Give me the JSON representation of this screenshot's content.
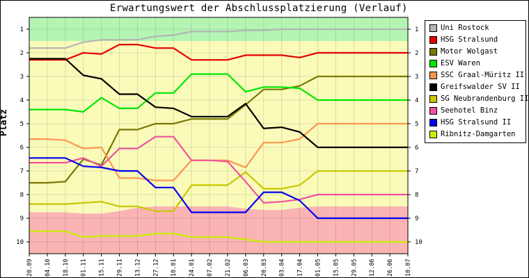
{
  "chart_data": {
    "type": "line",
    "title": "Erwartungswert der Abschlussplatzierung (Verlauf)",
    "ylabel": "Platz",
    "xlabel": "",
    "ylim": [
      1,
      10
    ],
    "y_inverted": true,
    "yticks": [
      "1",
      "2",
      "3",
      "4",
      "5",
      "6",
      "7",
      "8",
      "9",
      "10"
    ],
    "grid": true,
    "legend_position": "right",
    "categories": [
      "20.09",
      "04.10",
      "18.10",
      "01.11",
      "15.11",
      "29.11",
      "13.12",
      "27.12",
      "10.01",
      "24.01",
      "07.02",
      "21.02",
      "06.03",
      "20.03",
      "03.04",
      "17.04",
      "01.05",
      "15.05",
      "29.05",
      "12.06",
      "26.06",
      "10.07"
    ],
    "bands": [
      {
        "name": "top",
        "color": "#b4f5b4",
        "ranges": [
          [
            0.5,
            1.5
          ],
          [
            0.5,
            1.5
          ],
          [
            0.5,
            1.5
          ],
          [
            0.5,
            1.5
          ],
          [
            0.5,
            1.5
          ],
          [
            0.5,
            1.5
          ],
          [
            0.5,
            1.5
          ],
          [
            0.5,
            1.5
          ],
          [
            0.5,
            1.5
          ],
          [
            0.5,
            1.5
          ],
          [
            0.5,
            1.5
          ],
          [
            0.5,
            1.5
          ],
          [
            0.5,
            1.5
          ],
          [
            0.5,
            1.5
          ],
          [
            0.5,
            1.5
          ],
          [
            0.5,
            1.5
          ],
          [
            0.5,
            1.5
          ],
          [
            0.5,
            1.5
          ],
          [
            0.5,
            1.5
          ],
          [
            0.5,
            1.5
          ],
          [
            0.5,
            1.5
          ],
          [
            0.5,
            1.5
          ]
        ]
      },
      {
        "name": "middle",
        "color": "#fafab9",
        "ranges": [
          [
            1.5,
            8.75
          ],
          [
            1.5,
            8.75
          ],
          [
            1.5,
            8.75
          ],
          [
            1.5,
            8.8
          ],
          [
            1.5,
            8.8
          ],
          [
            1.5,
            8.7
          ],
          [
            1.5,
            8.55
          ],
          [
            1.5,
            8.5
          ],
          [
            1.5,
            8.5
          ],
          [
            1.5,
            8.5
          ],
          [
            1.5,
            8.5
          ],
          [
            1.5,
            8.5
          ],
          [
            1.5,
            8.6
          ],
          [
            1.5,
            8.65
          ],
          [
            1.5,
            8.65
          ],
          [
            1.5,
            8.55
          ],
          [
            1.5,
            8.5
          ],
          [
            1.5,
            8.5
          ],
          [
            1.5,
            8.5
          ],
          [
            1.5,
            8.5
          ],
          [
            1.5,
            8.5
          ],
          [
            1.5,
            8.5
          ]
        ]
      },
      {
        "name": "bottom",
        "color": "#fab4b4",
        "ranges": [
          [
            8.75,
            10.5
          ],
          [
            8.75,
            10.5
          ],
          [
            8.75,
            10.5
          ],
          [
            8.8,
            10.5
          ],
          [
            8.8,
            10.5
          ],
          [
            8.7,
            10.5
          ],
          [
            8.55,
            10.5
          ],
          [
            8.5,
            10.5
          ],
          [
            8.5,
            10.5
          ],
          [
            8.5,
            10.5
          ],
          [
            8.5,
            10.5
          ],
          [
            8.5,
            10.5
          ],
          [
            8.6,
            10.5
          ],
          [
            8.65,
            10.5
          ],
          [
            8.65,
            10.5
          ],
          [
            8.55,
            10.5
          ],
          [
            8.5,
            10.5
          ],
          [
            8.5,
            10.5
          ],
          [
            8.5,
            10.5
          ],
          [
            8.5,
            10.5
          ],
          [
            8.5,
            10.5
          ],
          [
            8.5,
            10.5
          ]
        ]
      }
    ],
    "series": [
      {
        "name": "Uni Rostock",
        "color": "#b4b4b4",
        "values": [
          1.8,
          1.8,
          1.8,
          1.55,
          1.45,
          1.45,
          1.45,
          1.3,
          1.25,
          1.1,
          1.1,
          1.1,
          1.05,
          1.05,
          1.0,
          1.0,
          1.0,
          1.0,
          1.0,
          1.0,
          1.0,
          1.0
        ]
      },
      {
        "name": "HSG Stralsund",
        "color": "#e60000",
        "values": [
          2.3,
          2.3,
          2.3,
          2.0,
          2.05,
          1.65,
          1.65,
          1.8,
          1.8,
          2.3,
          2.3,
          2.3,
          2.1,
          2.1,
          2.1,
          2.2,
          2.0,
          2.0,
          2.0,
          2.0,
          2.0,
          2.0
        ]
      },
      {
        "name": "Motor Wolgast",
        "color": "#787800",
        "values": [
          7.5,
          7.5,
          7.45,
          6.5,
          6.75,
          5.25,
          5.25,
          5.0,
          5.0,
          4.8,
          4.8,
          4.8,
          4.2,
          3.55,
          3.55,
          3.4,
          3.0,
          3.0,
          3.0,
          3.0,
          3.0,
          3.0
        ]
      },
      {
        "name": "ESV Waren",
        "color": "#00e600",
        "values": [
          4.4,
          4.4,
          4.4,
          4.5,
          3.9,
          4.35,
          4.35,
          3.7,
          3.7,
          2.9,
          2.9,
          2.9,
          3.65,
          3.45,
          3.45,
          3.5,
          4.0,
          4.0,
          4.0,
          4.0,
          4.0,
          4.0
        ]
      },
      {
        "name": "SSC Graal-Müritz II",
        "color": "#fa9650",
        "values": [
          5.65,
          5.65,
          5.7,
          6.05,
          6.0,
          7.3,
          7.3,
          7.4,
          7.4,
          6.55,
          6.55,
          6.55,
          6.85,
          5.8,
          5.8,
          5.65,
          5.0,
          5.0,
          5.0,
          5.0,
          5.0,
          5.0
        ]
      },
      {
        "name": "Greifswalder SV II",
        "color": "#000000",
        "values": [
          2.25,
          2.25,
          2.25,
          2.95,
          3.1,
          3.75,
          3.75,
          4.3,
          4.35,
          4.7,
          4.7,
          4.7,
          4.15,
          5.2,
          5.15,
          5.35,
          6.0,
          6.0,
          6.0,
          6.0,
          6.0,
          6.0
        ]
      },
      {
        "name": "SG Neubrandenburg II",
        "color": "#c8c800",
        "values": [
          8.4,
          8.4,
          8.4,
          8.35,
          8.3,
          8.5,
          8.5,
          8.7,
          8.7,
          7.6,
          7.6,
          7.6,
          7.05,
          7.75,
          7.75,
          7.6,
          7.0,
          7.0,
          7.0,
          7.0,
          7.0,
          7.0
        ]
      },
      {
        "name": "Seehotel Binz",
        "color": "#f050a0",
        "values": [
          6.65,
          6.65,
          6.65,
          6.45,
          6.8,
          6.05,
          6.05,
          5.55,
          5.55,
          6.55,
          6.55,
          6.6,
          7.45,
          8.35,
          8.3,
          8.2,
          8.0,
          8.0,
          8.0,
          8.0,
          8.0,
          8.0
        ]
      },
      {
        "name": "HSG Stralsund II",
        "color": "#0000f0",
        "values": [
          6.45,
          6.45,
          6.45,
          6.8,
          6.85,
          7.0,
          7.0,
          7.7,
          7.7,
          8.75,
          8.75,
          8.75,
          8.75,
          7.9,
          7.9,
          8.25,
          9.0,
          9.0,
          9.0,
          9.0,
          9.0,
          9.0
        ]
      },
      {
        "name": "Ribnitz-Damgarten",
        "color": "#c8f000",
        "values": [
          9.55,
          9.55,
          9.55,
          9.8,
          9.75,
          9.75,
          9.75,
          9.65,
          9.65,
          9.8,
          9.8,
          9.8,
          9.9,
          10.0,
          10.0,
          10.0,
          10.0,
          10.0,
          10.0,
          10.0,
          10.0,
          10.0
        ]
      }
    ]
  }
}
